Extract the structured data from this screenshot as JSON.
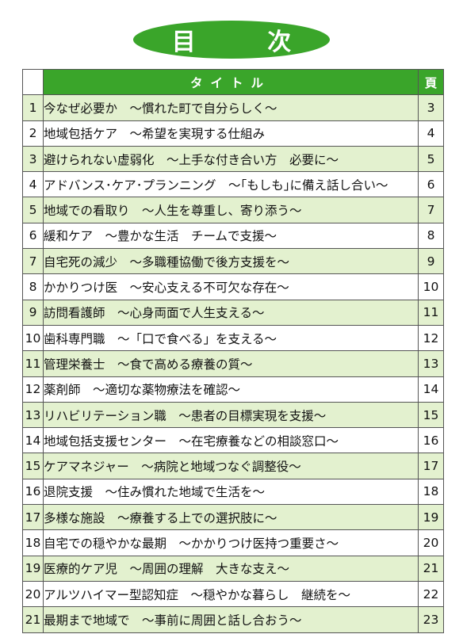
{
  "heading": "目 次",
  "header": {
    "title": "タイトル",
    "page": "頁"
  },
  "rows": [
    {
      "no": "1",
      "title": "今なぜ必要か　〜慣れた町で自分らしく〜",
      "page": "3"
    },
    {
      "no": "2",
      "title": "地域包括ケア　〜希望を実現する仕組み",
      "page": "4"
    },
    {
      "no": "3",
      "title": "避けられない虚弱化　〜上手な付き合い方　必要に〜",
      "page": "5"
    },
    {
      "no": "4",
      "title": "アドバンス･ケア･プランニング　〜｢もしも｣に備え話し合い〜",
      "page": "6"
    },
    {
      "no": "5",
      "title": "地域での看取り　〜人生を尊重し、寄り添う〜",
      "page": "7"
    },
    {
      "no": "6",
      "title": "緩和ケア　〜豊かな生活　チームで支援〜",
      "page": "8"
    },
    {
      "no": "7",
      "title": "自宅死の減少　〜多職種協働で後方支援を〜",
      "page": "9"
    },
    {
      "no": "8",
      "title": "かかりつけ医　〜安心支える不可欠な存在〜",
      "page": "10"
    },
    {
      "no": "9",
      "title": "訪問看護師　〜心身両面で人生支える〜",
      "page": "11"
    },
    {
      "no": "10",
      "title": "歯科専門職　〜「口で食べる」を支える〜",
      "page": "12"
    },
    {
      "no": "11",
      "title": "管理栄養士　〜食で高める療養の質〜",
      "page": "13"
    },
    {
      "no": "12",
      "title": "薬剤師　〜適切な薬物療法を確認〜",
      "page": "14"
    },
    {
      "no": "13",
      "title": "リハビリテーション職　〜患者の目標実現を支援〜",
      "page": "15"
    },
    {
      "no": "14",
      "title": "地域包括支援センター　〜在宅療養などの相談窓口〜",
      "page": "16"
    },
    {
      "no": "15",
      "title": "ケアマネジャー　〜病院と地域つなぐ調整役〜",
      "page": "17"
    },
    {
      "no": "16",
      "title": "退院支援　〜住み慣れた地域で生活を〜",
      "page": "18"
    },
    {
      "no": "17",
      "title": "多様な施設　〜療養する上での選択肢に〜",
      "page": "19"
    },
    {
      "no": "18",
      "title": "自宅での穏やかな最期　〜かかりつけ医持つ重要さ〜",
      "page": "20"
    },
    {
      "no": "19",
      "title": "医療的ケア児　〜周囲の理解　大きな支え〜",
      "page": "21"
    },
    {
      "no": "20",
      "title": "アルツハイマー型認知症　〜穏やかな暮らし　継続を〜",
      "page": "22"
    },
    {
      "no": "21",
      "title": "最期まで地域で　〜事前に周囲と話し合おう〜",
      "page": "23"
    }
  ],
  "colors": {
    "green": "#3aa52a",
    "row_tint": "#e3f1cf"
  }
}
